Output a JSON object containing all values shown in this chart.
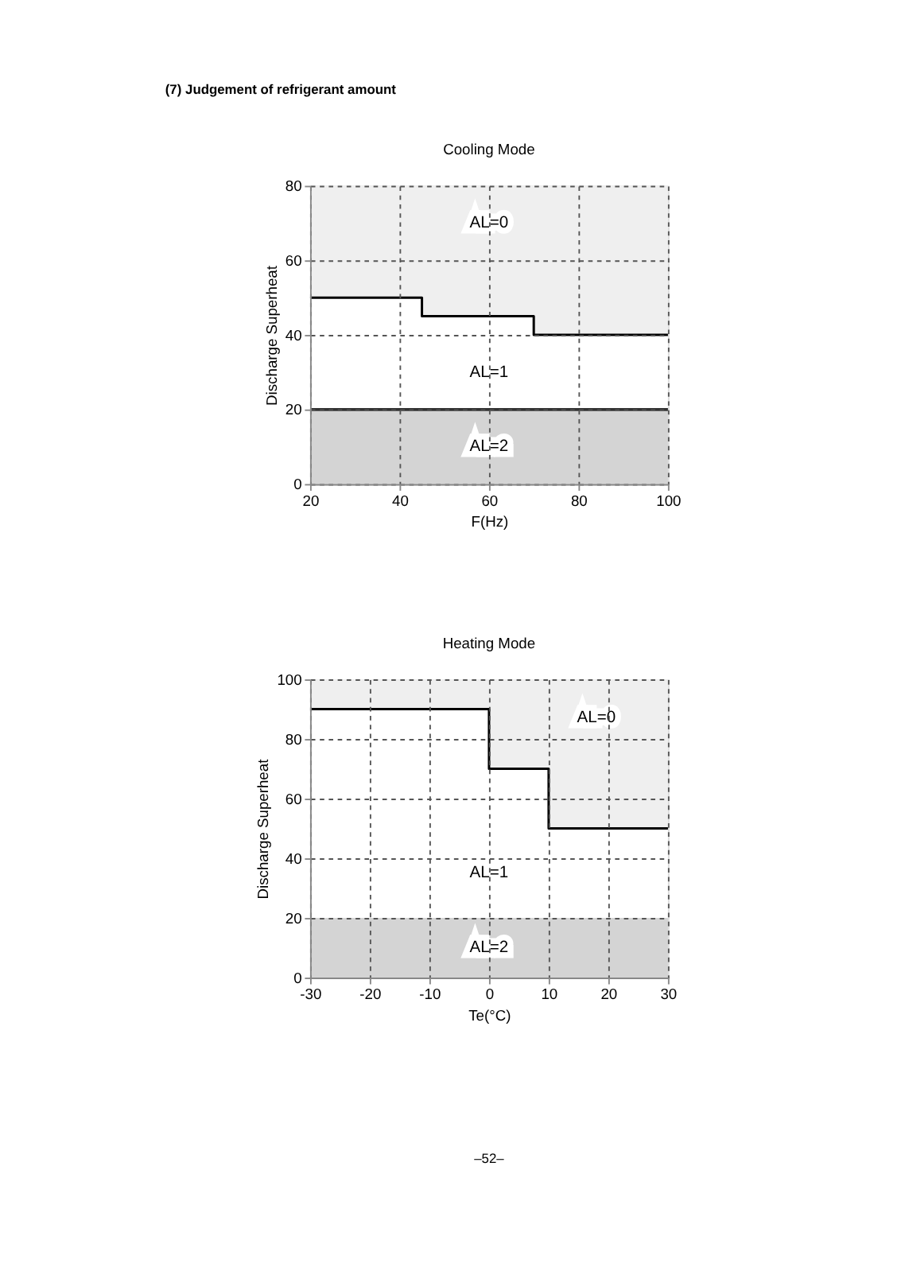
{
  "chart_data": [
    {
      "type": "step",
      "title": "Cooling Mode",
      "xlabel": "F(Hz)",
      "ylabel": "Discharge Superheat",
      "annotations": [
        "(7)   Judgement of refrigerant amount",
        "AL=0",
        "AL=1",
        "AL=2"
      ],
      "series": [
        {
          "color": "#000000",
          "x": [
            20,
            45,
            70,
            100
          ],
          "values": [
            50,
            45,
            40,
            40
          ],
          "lower": [
            50,
            45,
            40,
            40
          ],
          "upper": [
            80,
            80,
            80,
            80
          ]
        }
      ],
      "bands": [
        {
          "axis": "y",
          "from": 0,
          "to": 20,
          "color": "#d4d4d4"
        }
      ],
      "ref_lines": [
        {
          "axis": "y",
          "value": 20,
          "color": "#333333"
        }
      ],
      "xlim": [
        20,
        100
      ],
      "xticks": [
        20,
        40,
        60,
        80,
        100
      ],
      "ylim": [
        0,
        80
      ],
      "yticks": [
        0,
        20,
        40,
        60,
        80
      ],
      "grid": true
    },
    {
      "type": "step",
      "title": "Heating Mode",
      "xlabel": "Te(°C)",
      "ylabel": "Discharge Superheat",
      "annotations": [
        "AL=0",
        "AL=1",
        "AL=2",
        "–52–"
      ],
      "series": [
        {
          "color": "#000000",
          "x": [
            -30,
            0,
            10,
            30
          ],
          "values": [
            90,
            70,
            50,
            50
          ],
          "lower": [
            90,
            70,
            50,
            50
          ],
          "upper": [
            100,
            100,
            100,
            100
          ]
        }
      ],
      "bands": [
        {
          "axis": "y",
          "from": 0,
          "to": 20,
          "color": "#d4d4d4"
        }
      ],
      "xlim": [
        -30,
        30
      ],
      "xticks": [
        -30,
        -20,
        -10,
        0,
        10,
        20,
        30
      ],
      "ylim": [
        0,
        100
      ],
      "yticks": [
        0,
        20,
        40,
        60,
        80,
        100
      ],
      "grid": true
    }
  ]
}
